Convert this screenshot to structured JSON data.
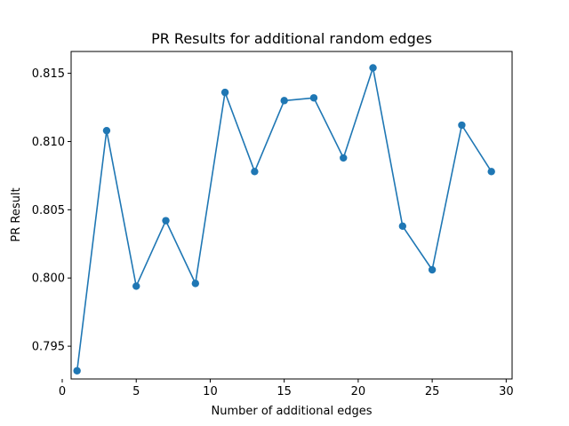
{
  "chart_data": {
    "type": "line",
    "title": "PR Results for additional random edges",
    "xlabel": "Number of additional edges",
    "ylabel": "PR Result",
    "xlim": [
      0.6,
      30.4
    ],
    "ylim": [
      0.7926,
      0.8166
    ],
    "xticks": [
      0,
      5,
      10,
      15,
      20,
      25,
      30
    ],
    "xtick_labels": [
      "0",
      "5",
      "10",
      "15",
      "20",
      "25",
      "30"
    ],
    "yticks": [
      0.795,
      0.8,
      0.805,
      0.81,
      0.815
    ],
    "ytick_labels": [
      "0.795",
      "0.800",
      "0.805",
      "0.810",
      "0.815"
    ],
    "grid": false,
    "series": [
      {
        "color": "#1f77b4",
        "marker": "circle",
        "x": [
          1,
          3,
          5,
          7,
          9,
          11,
          13,
          15,
          17,
          19,
          21,
          23,
          25,
          27,
          29
        ],
        "y": [
          0.7932,
          0.8108,
          0.7994,
          0.8042,
          0.7996,
          0.8136,
          0.8078,
          0.813,
          0.8132,
          0.8088,
          0.8154,
          0.8038,
          0.8006,
          0.8112,
          0.8078
        ]
      }
    ]
  }
}
